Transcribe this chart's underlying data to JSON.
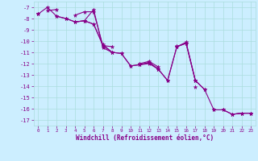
{
  "xlabel": "Windchill (Refroidissement éolien,°C)",
  "background_color": "#cceeff",
  "grid_color": "#aadddd",
  "line_color": "#880088",
  "xlim": [
    -0.5,
    23.5
  ],
  "ylim": [
    -17.5,
    -6.5
  ],
  "xticks": [
    0,
    1,
    2,
    3,
    4,
    5,
    6,
    7,
    8,
    9,
    10,
    11,
    12,
    13,
    14,
    15,
    16,
    17,
    18,
    19,
    20,
    21,
    22,
    23
  ],
  "yticks": [
    -7,
    -8,
    -9,
    -10,
    -11,
    -12,
    -13,
    -14,
    -15,
    -16,
    -17
  ],
  "series": [
    [
      null,
      -7.3,
      -7.2,
      null,
      -7.7,
      -7.4,
      -7.4,
      -10.4,
      -10.5,
      null,
      null,
      -12.1,
      -12.0,
      -12.5,
      null,
      -10.5,
      -10.1,
      -13.5,
      null,
      -16.1,
      null,
      -16.5,
      -16.4,
      -16.4
    ],
    [
      null,
      null,
      null,
      null,
      -8.3,
      -8.2,
      -7.2,
      -10.6,
      -11.0,
      null,
      null,
      -12.0,
      -11.8,
      -12.3,
      null,
      -10.4,
      null,
      -14.1,
      null,
      null,
      -16.1,
      -16.5,
      -16.4,
      -16.4
    ],
    [
      -7.6,
      -7.0,
      -7.8,
      -8.0,
      -8.3,
      -8.2,
      -8.5,
      -10.3,
      -11.0,
      -11.1,
      -12.2,
      -12.1,
      -11.9,
      -12.5,
      -13.5,
      -10.5,
      -10.2,
      -13.5,
      -14.3,
      -16.1,
      -16.1,
      -16.5,
      -16.4,
      -16.4
    ],
    [
      -7.6,
      null,
      -7.8,
      -8.0,
      -8.3,
      -8.2,
      -8.5,
      -10.4,
      -11.0,
      -11.1,
      -12.2,
      -12.1,
      -11.9,
      -12.5,
      -13.5,
      -10.5,
      -10.2,
      -13.5,
      -14.3,
      null,
      null,
      null,
      null,
      null
    ],
    [
      -7.6,
      null,
      null,
      null,
      null,
      null,
      null,
      null,
      null,
      null,
      null,
      null,
      null,
      null,
      null,
      null,
      null,
      null,
      null,
      null,
      null,
      null,
      null,
      null
    ]
  ]
}
